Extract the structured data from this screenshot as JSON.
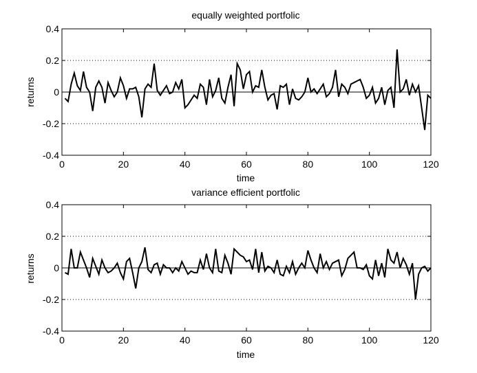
{
  "chart_data": [
    {
      "type": "line",
      "title": "equally weighted portfolic",
      "xlabel": "time",
      "ylabel": "returns",
      "xlim": [
        0,
        120
      ],
      "ylim": [
        -0.4,
        0.4
      ],
      "xticks": [
        0,
        20,
        40,
        60,
        80,
        100,
        120
      ],
      "xtick_labels": [
        "0",
        "20",
        "40",
        "60",
        "80",
        "100",
        "120"
      ],
      "yticks": [
        -0.4,
        -0.2,
        0,
        0.2,
        0.4
      ],
      "ytick_labels": [
        "-0.4",
        "-0.2",
        "0",
        "0.2",
        "0.4"
      ],
      "grid_y_dotted": [
        -0.2,
        0.2
      ],
      "zero_line": true,
      "line_color": "#000000",
      "series": [
        {
          "x": [
            1,
            2,
            3,
            4,
            5,
            6,
            7,
            8,
            9,
            10,
            11,
            12,
            13,
            14,
            15,
            16,
            17,
            18,
            19,
            20,
            21,
            22,
            23,
            24,
            25,
            26,
            27,
            28,
            29,
            30,
            31,
            32,
            33,
            34,
            35,
            36,
            37,
            38,
            39,
            40,
            41,
            42,
            43,
            44,
            45,
            46,
            47,
            48,
            49,
            50,
            51,
            52,
            53,
            54,
            55,
            56,
            57,
            58,
            59,
            60,
            61,
            62,
            63,
            64,
            65,
            66,
            67,
            68,
            69,
            70,
            71,
            72,
            73,
            74,
            75,
            76,
            77,
            78,
            79,
            80,
            81,
            82,
            83,
            84,
            85,
            86,
            87,
            88,
            89,
            90,
            91,
            92,
            93,
            94,
            95,
            96,
            97,
            98,
            99,
            100,
            101,
            102,
            103,
            104,
            105,
            106,
            107,
            108,
            109,
            110,
            111,
            112,
            113,
            114,
            115,
            116,
            117,
            118,
            119,
            120
          ],
          "values": [
            -0.04,
            -0.06,
            0.05,
            0.12,
            0.04,
            0.01,
            0.13,
            0.03,
            0.0,
            -0.12,
            0.03,
            0.07,
            0.03,
            -0.07,
            0.06,
            0.01,
            -0.03,
            0.0,
            0.09,
            0.04,
            -0.04,
            0.02,
            0.02,
            0.03,
            -0.03,
            -0.16,
            0.02,
            0.05,
            0.03,
            0.18,
            0.01,
            -0.02,
            0.01,
            0.04,
            -0.01,
            0.0,
            0.06,
            0.02,
            0.08,
            -0.1,
            -0.08,
            -0.05,
            -0.02,
            -0.04,
            0.05,
            0.03,
            -0.08,
            0.08,
            -0.03,
            0.01,
            0.09,
            -0.04,
            -0.07,
            0.03,
            0.11,
            -0.09,
            0.18,
            0.14,
            0.02,
            0.11,
            0.13,
            0.0,
            0.04,
            0.03,
            0.14,
            0.03,
            -0.05,
            -0.02,
            -0.01,
            -0.11,
            0.04,
            0.03,
            0.05,
            -0.08,
            0.02,
            -0.04,
            -0.05,
            -0.03,
            0.0,
            0.09,
            0.0,
            0.02,
            -0.01,
            0.02,
            0.05,
            -0.03,
            -0.01,
            0.03,
            0.14,
            -0.03,
            0.05,
            0.03,
            -0.01,
            0.05,
            0.06,
            0.07,
            0.08,
            0.03,
            -0.04,
            -0.02,
            0.03,
            -0.07,
            -0.04,
            0.03,
            -0.08,
            0.01,
            0.03,
            -0.1,
            0.27,
            0.0,
            0.02,
            0.08,
            -0.02,
            0.05,
            0.0,
            0.04,
            -0.1,
            -0.24,
            -0.02,
            -0.04
          ]
        }
      ]
    },
    {
      "type": "line",
      "title": "variance efficient portfolic",
      "xlabel": "time",
      "ylabel": "returns",
      "xlim": [
        0,
        120
      ],
      "ylim": [
        -0.4,
        0.4
      ],
      "xticks": [
        0,
        20,
        40,
        60,
        80,
        100,
        120
      ],
      "xtick_labels": [
        "0",
        "20",
        "40",
        "60",
        "80",
        "100",
        "120"
      ],
      "yticks": [
        -0.4,
        -0.2,
        0,
        0.2,
        0.4
      ],
      "ytick_labels": [
        "-0.4",
        "-0.2",
        "0",
        "0.2",
        "0.4"
      ],
      "grid_y_dotted": [
        -0.2,
        0.2
      ],
      "zero_line": true,
      "line_color": "#000000",
      "series": [
        {
          "x": [
            1,
            2,
            3,
            4,
            5,
            6,
            7,
            8,
            9,
            10,
            11,
            12,
            13,
            14,
            15,
            16,
            17,
            18,
            19,
            20,
            21,
            22,
            23,
            24,
            25,
            26,
            27,
            28,
            29,
            30,
            31,
            32,
            33,
            34,
            35,
            36,
            37,
            38,
            39,
            40,
            41,
            42,
            43,
            44,
            45,
            46,
            47,
            48,
            49,
            50,
            51,
            52,
            53,
            54,
            55,
            56,
            57,
            58,
            59,
            60,
            61,
            62,
            63,
            64,
            65,
            66,
            67,
            68,
            69,
            70,
            71,
            72,
            73,
            74,
            75,
            76,
            77,
            78,
            79,
            80,
            81,
            82,
            83,
            84,
            85,
            86,
            87,
            88,
            89,
            90,
            91,
            92,
            93,
            94,
            95,
            96,
            97,
            98,
            99,
            100,
            101,
            102,
            103,
            104,
            105,
            106,
            107,
            108,
            109,
            110,
            111,
            112,
            113,
            114,
            115,
            116,
            117,
            118,
            119,
            120
          ],
          "values": [
            -0.03,
            -0.04,
            0.12,
            0.0,
            0.0,
            0.1,
            0.05,
            0.0,
            -0.06,
            0.06,
            0.01,
            -0.04,
            0.05,
            0.0,
            -0.03,
            -0.02,
            0.0,
            0.03,
            -0.03,
            -0.07,
            0.04,
            0.06,
            -0.03,
            -0.13,
            0.0,
            0.04,
            0.13,
            -0.01,
            -0.03,
            0.02,
            0.03,
            -0.04,
            0.02,
            0.0,
            0.0,
            -0.03,
            0.0,
            -0.02,
            0.04,
            0.0,
            -0.04,
            -0.02,
            -0.03,
            -0.03,
            0.05,
            -0.01,
            0.09,
            0.0,
            -0.03,
            0.12,
            -0.02,
            -0.03,
            0.08,
            0.03,
            -0.04,
            0.12,
            0.1,
            0.08,
            0.07,
            0.04,
            0.05,
            -0.01,
            0.12,
            -0.03,
            0.1,
            -0.02,
            0.01,
            0.0,
            -0.03,
            0.05,
            -0.04,
            -0.05,
            0.01,
            -0.03,
            0.04,
            -0.04,
            0.0,
            0.03,
            0.0,
            0.11,
            0.05,
            0.0,
            -0.03,
            0.09,
            0.0,
            0.04,
            -0.01,
            0.03,
            0.04,
            0.05,
            -0.05,
            -0.01,
            0.06,
            0.08,
            0.1,
            0.0,
            0.0,
            -0.01,
            0.02,
            -0.05,
            -0.07,
            0.05,
            -0.05,
            0.03,
            -0.06,
            0.12,
            0.05,
            0.03,
            0.1,
            0.0,
            0.06,
            0.02,
            -0.04,
            0.03,
            -0.2,
            -0.04,
            0.0,
            0.01,
            -0.02,
            0.0
          ]
        }
      ]
    }
  ]
}
